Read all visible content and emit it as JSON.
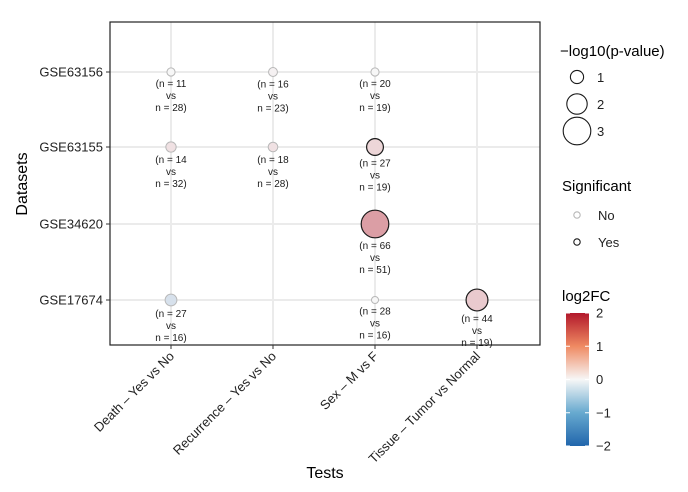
{
  "chart_data": {
    "type": "scatter",
    "xlabel": "Tests",
    "ylabel": "Datasets",
    "x_categories": [
      "Death – Yes vs No",
      "Recurrence – Yes vs No",
      "Sex – M vs F",
      "Tissue – Tumor vs Normal"
    ],
    "y_categories": [
      "GSE63156",
      "GSE63155",
      "GSE34620",
      "GSE17674"
    ],
    "grid": true,
    "points": [
      {
        "test": "Death – Yes vs No",
        "dataset": "GSE63156",
        "neg_log10_p": 0.3,
        "log2FC": 0.0,
        "significant": false,
        "annotation": [
          "(n = 11",
          "vs",
          "n = 28)"
        ]
      },
      {
        "test": "Recurrence – Yes vs No",
        "dataset": "GSE63156",
        "neg_log10_p": 0.4,
        "log2FC": 0.05,
        "significant": false,
        "annotation": [
          "(n = 16",
          "vs",
          "n = 23)"
        ]
      },
      {
        "test": "Sex – M vs F",
        "dataset": "GSE63156",
        "neg_log10_p": 0.3,
        "log2FC": 0.0,
        "significant": false,
        "annotation": [
          "(n = 20",
          "vs",
          "n = 19)"
        ]
      },
      {
        "test": "Death – Yes vs No",
        "dataset": "GSE63155",
        "neg_log10_p": 0.6,
        "log2FC": 0.2,
        "significant": false,
        "annotation": [
          "(n = 14",
          "vs",
          "n = 32)"
        ]
      },
      {
        "test": "Recurrence – Yes vs No",
        "dataset": "GSE63155",
        "neg_log10_p": 0.5,
        "log2FC": 0.2,
        "significant": false,
        "annotation": [
          "(n = 18",
          "vs",
          "n = 28)"
        ]
      },
      {
        "test": "Sex – M vs F",
        "dataset": "GSE63155",
        "neg_log10_p": 1.5,
        "log2FC": 0.3,
        "significant": true,
        "annotation": [
          "(n = 27",
          "vs",
          "n = 19)"
        ]
      },
      {
        "test": "Sex – M vs F",
        "dataset": "GSE34620",
        "neg_log10_p": 3.0,
        "log2FC": 0.8,
        "significant": true,
        "annotation": [
          "(n = 66",
          "vs",
          "n = 51)"
        ]
      },
      {
        "test": "Death – Yes vs No",
        "dataset": "GSE17674",
        "neg_log10_p": 0.8,
        "log2FC": -0.3,
        "significant": false,
        "annotation": [
          "(n = 27",
          "vs",
          "n = 16)"
        ]
      },
      {
        "test": "Sex – M vs F",
        "dataset": "GSE17674",
        "neg_log10_p": 0.15,
        "log2FC": 0.0,
        "significant": false,
        "annotation": [
          "(n = 28",
          "vs",
          "n = 16)"
        ]
      },
      {
        "test": "Tissue – Tumor vs Normal",
        "dataset": "GSE17674",
        "neg_log10_p": 2.2,
        "log2FC": 0.4,
        "significant": true,
        "annotation": [
          "(n = 44",
          "vs",
          "n = 19)"
        ]
      }
    ],
    "legends": {
      "size": {
        "title": "−log10(p-value)",
        "values": [
          1,
          2,
          3
        ],
        "labels": [
          "1",
          "2",
          "3"
        ]
      },
      "significant": {
        "title": "Significant",
        "items": [
          {
            "label": "No",
            "significant": false
          },
          {
            "label": "Yes",
            "significant": true
          }
        ]
      },
      "color": {
        "title": "log2FC",
        "range": [
          -2,
          2
        ],
        "ticks": [
          2,
          1,
          0,
          -1,
          -2
        ],
        "tick_labels": [
          "2",
          "1",
          "0",
          "−1",
          "−2"
        ],
        "colors": {
          "low": "#2166ac",
          "mid": "#f7f7f7",
          "high": "#b2182b"
        }
      }
    },
    "colors": {
      "gridline": "#ebebeb",
      "panel_border": "#222222",
      "non_sig_stroke": "#b8b8b8",
      "sig_stroke": "#1a1a1a"
    }
  }
}
